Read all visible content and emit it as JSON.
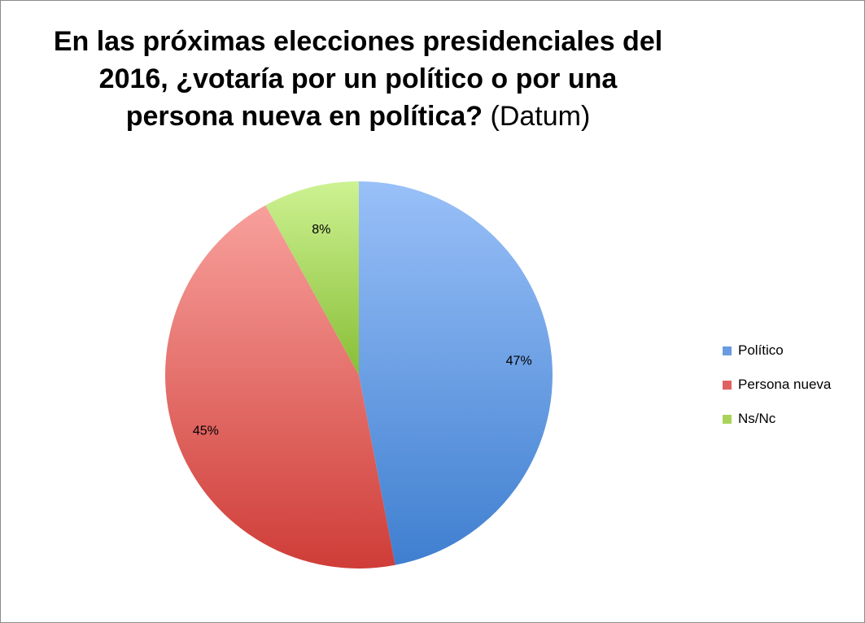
{
  "chart_data": {
    "type": "pie",
    "title": "En las próximas elecciones presidenciales del 2016, ¿votaría por un político o por una persona nueva en política? (Datum)",
    "title_main": "En las próximas elecciones presidenciales del 2016, ¿votaría por un político o por una persona nueva en política?",
    "title_suffix": "(Datum)",
    "categories": [
      "Político",
      "Persona nueva",
      "Ns/Nc"
    ],
    "values": [
      47,
      45,
      8
    ],
    "labels": [
      "47%",
      "45%",
      "8%"
    ],
    "colors": [
      "#6a9be2",
      "#e0625f",
      "#a9d35a"
    ],
    "legend_position": "right"
  }
}
